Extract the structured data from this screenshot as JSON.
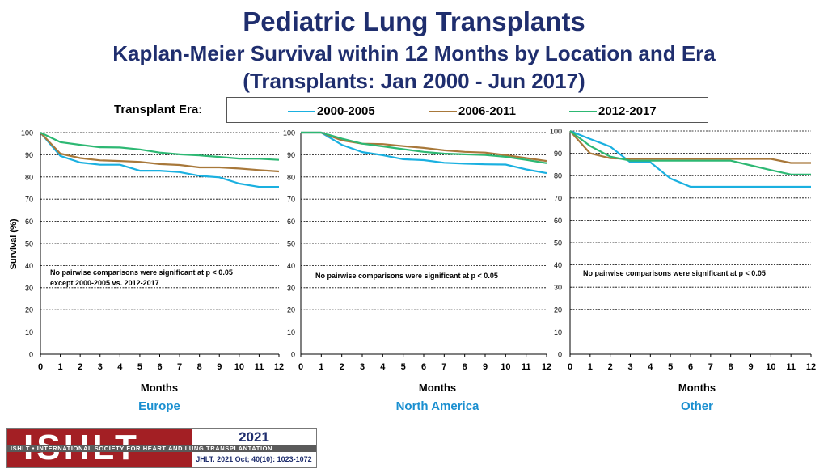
{
  "header": {
    "title": "Pediatric Lung Transplants",
    "subtitle_line1": "Kaplan-Meier Survival within 12 Months by Location and Era",
    "subtitle_line2": "(Transplants: Jan 2000 - Jun 2017)"
  },
  "legend": {
    "label": "Transplant Era:",
    "items": [
      {
        "name": "2000-2005",
        "color": "#1ab0e0"
      },
      {
        "name": "2006-2011",
        "color": "#a8783a"
      },
      {
        "name": "2012-2017",
        "color": "#2db873"
      }
    ]
  },
  "chart_data": [
    {
      "type": "line",
      "panel_label": "Europe",
      "xlabel": "Months",
      "ylabel": "Survival (%)",
      "xlim": [
        0,
        12
      ],
      "ylim": [
        0,
        100
      ],
      "xticks": [
        "0",
        "1",
        "2",
        "3",
        "4",
        "5",
        "6",
        "7",
        "8",
        "9",
        "10",
        "11",
        "12"
      ],
      "yticks": [
        "0",
        "10",
        "20",
        "30",
        "40",
        "50",
        "60",
        "70",
        "80",
        "90",
        "100"
      ],
      "grid": "horizontal dashed",
      "annotation": [
        "No pairwise comparisons were significant at p < 0.05",
        "except 2000-2005 vs. 2012-2017"
      ],
      "series": [
        {
          "name": "2000-2005",
          "x": [
            0,
            1,
            2,
            3,
            4,
            5,
            6,
            7,
            8,
            9,
            10,
            11,
            12
          ],
          "values": [
            100,
            89.5,
            86.5,
            85.5,
            85.5,
            82.8,
            82.8,
            82.2,
            80.5,
            79.8,
            77,
            75.5,
            75.5
          ]
        },
        {
          "name": "2006-2011",
          "x": [
            0,
            1,
            2,
            3,
            4,
            5,
            6,
            7,
            8,
            9,
            10,
            11,
            12
          ],
          "values": [
            100,
            90.5,
            88.5,
            87.5,
            87.2,
            86.8,
            85.8,
            85.4,
            84.3,
            84.3,
            83.8,
            83.1,
            82.5
          ]
        },
        {
          "name": "2012-2017",
          "x": [
            0,
            1,
            2,
            3,
            4,
            5,
            6,
            7,
            8,
            9,
            10,
            11,
            12
          ],
          "values": [
            100,
            95.7,
            94.5,
            93.4,
            93.3,
            92.4,
            91,
            90.2,
            89.7,
            89,
            88.3,
            88.2,
            87.7
          ]
        }
      ]
    },
    {
      "type": "line",
      "panel_label": "North America",
      "xlabel": "Months",
      "ylabel": "",
      "xlim": [
        0,
        12
      ],
      "ylim": [
        0,
        100
      ],
      "xticks": [
        "0",
        "1",
        "2",
        "3",
        "4",
        "5",
        "6",
        "7",
        "8",
        "9",
        "10",
        "11",
        "12"
      ],
      "yticks": [
        "0",
        "10",
        "20",
        "30",
        "40",
        "50",
        "60",
        "70",
        "80",
        "90",
        "100"
      ],
      "grid": "horizontal dashed",
      "annotation": [
        "No pairwise comparisons were significant at p < 0.05"
      ],
      "series": [
        {
          "name": "2000-2005",
          "x": [
            0,
            1,
            2,
            3,
            4,
            5,
            6,
            7,
            8,
            9,
            10,
            11,
            12
          ],
          "values": [
            100,
            100,
            94.5,
            91.2,
            89.8,
            88,
            87.6,
            86.4,
            86,
            85.7,
            85.6,
            83.4,
            81.7
          ]
        },
        {
          "name": "2006-2011",
          "x": [
            0,
            1,
            2,
            3,
            4,
            5,
            6,
            7,
            8,
            9,
            10,
            11,
            12
          ],
          "values": [
            100,
            100,
            96.5,
            95,
            94.8,
            93.9,
            93.1,
            92,
            91.3,
            91,
            89.8,
            88.5,
            87.2
          ]
        },
        {
          "name": "2012-2017",
          "x": [
            0,
            1,
            2,
            3,
            4,
            5,
            6,
            7,
            8,
            9,
            10,
            11,
            12
          ],
          "values": [
            100,
            100,
            97.3,
            95,
            93.8,
            92.5,
            91.3,
            90.5,
            90.2,
            89.9,
            89.1,
            87.7,
            86.2
          ]
        }
      ]
    },
    {
      "type": "line",
      "panel_label": "Other",
      "xlabel": "Months",
      "ylabel": "",
      "xlim": [
        0,
        12
      ],
      "ylim": [
        0,
        100
      ],
      "xticks": [
        "0",
        "1",
        "2",
        "3",
        "4",
        "5",
        "6",
        "7",
        "8",
        "9",
        "10",
        "11",
        "12"
      ],
      "yticks": [
        "0",
        "10",
        "20",
        "30",
        "40",
        "50",
        "60",
        "70",
        "80",
        "90",
        "100"
      ],
      "grid": "horizontal dashed",
      "annotation": [
        "No pairwise comparisons were significant at p < 0.05"
      ],
      "series": [
        {
          "name": "2000-2005",
          "x": [
            0,
            1,
            2,
            3,
            4,
            5,
            6,
            7,
            8,
            9,
            10,
            11,
            12
          ],
          "values": [
            100,
            96.4,
            93,
            86,
            86,
            78.7,
            75,
            75,
            75,
            75,
            75,
            75,
            75
          ]
        },
        {
          "name": "2006-2011",
          "x": [
            0,
            1,
            2,
            3,
            4,
            5,
            6,
            7,
            8,
            9,
            10,
            11,
            12
          ],
          "values": [
            100,
            90,
            87.8,
            87.5,
            87.5,
            87.5,
            87.5,
            87.5,
            87.5,
            87.5,
            87.5,
            85.7,
            85.7
          ]
        },
        {
          "name": "2012-2017",
          "x": [
            0,
            1,
            2,
            3,
            4,
            5,
            6,
            7,
            8,
            9,
            10,
            11,
            12
          ],
          "values": [
            100,
            93.3,
            88.5,
            86.7,
            86.7,
            86.7,
            86.7,
            86.7,
            86.7,
            84.6,
            82.5,
            80.5,
            80.5
          ]
        }
      ]
    }
  ],
  "footer": {
    "logo_text": "ISHLT",
    "org_name": "ISHLT • INTERNATIONAL SOCIETY FOR HEART AND LUNG TRANSPLANTATION",
    "year": "2021",
    "citation": "JHLT. 2021 Oct; 40(10): 1023-1072"
  }
}
